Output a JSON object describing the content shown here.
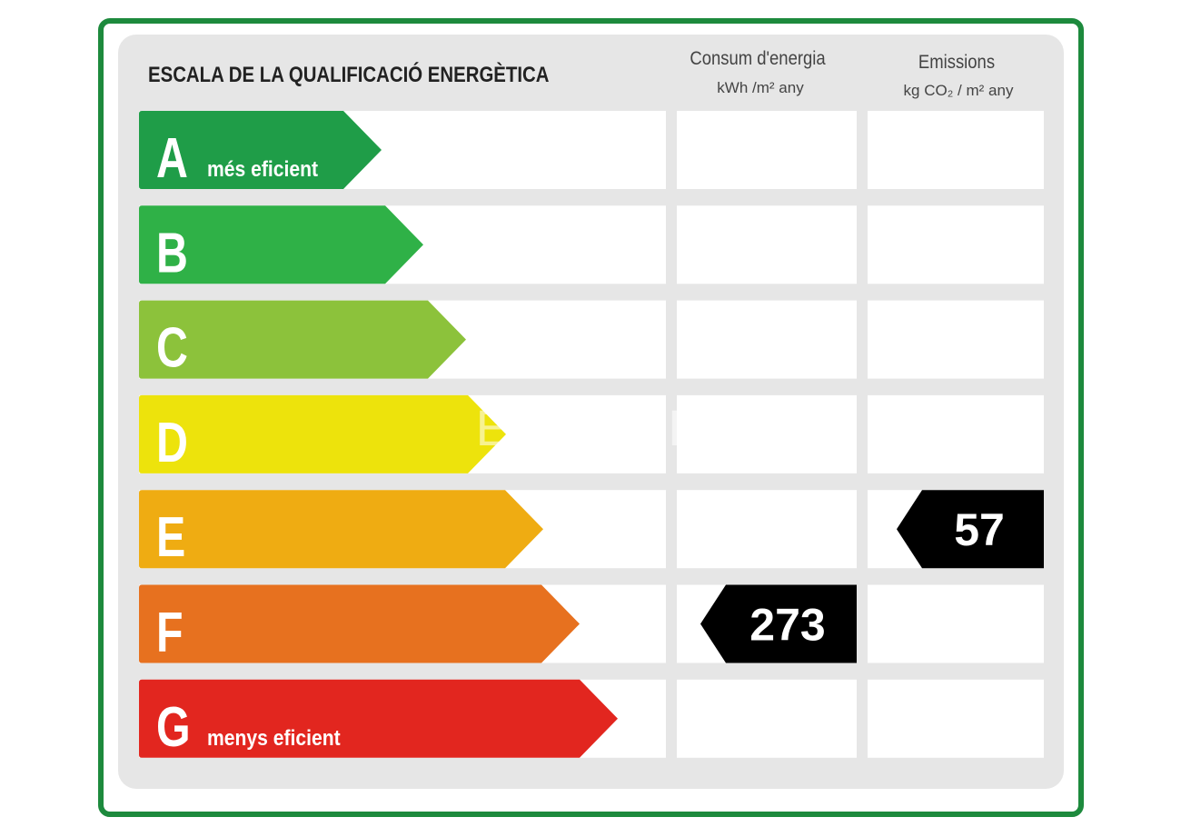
{
  "header": {
    "title": "ESCALA DE LA QUALIFICACIÓ ENERGÈTICA"
  },
  "columns": [
    {
      "title": "Consum d'energia",
      "unit": "kWh /m² any"
    },
    {
      "title": "Emissions",
      "unit": "kg CO₂ / m² any"
    }
  ],
  "watermark": "ESPIGUL",
  "rows": [
    {
      "letter": "A",
      "label": "més eficient",
      "color": "#1f9d48"
    },
    {
      "letter": "B",
      "color": "#2fb147"
    },
    {
      "letter": "C",
      "color": "#8cc23b"
    },
    {
      "letter": "D",
      "color": "#ede30c"
    },
    {
      "letter": "E",
      "color": "#efac12",
      "emissions": 57
    },
    {
      "letter": "F",
      "color": "#e7711f",
      "consumption": 273
    },
    {
      "letter": "G",
      "label": "menys eficient",
      "color": "#e2261f"
    }
  ]
}
